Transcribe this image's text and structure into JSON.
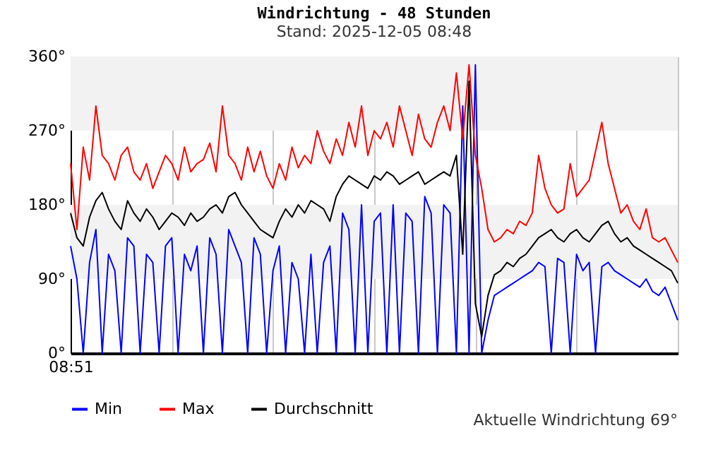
{
  "chart_data": {
    "type": "line",
    "title": "Windrichtung - 48 Stunden",
    "subtitle": "Stand: 2025-12-05 08:48",
    "annotations": [
      "Aktuelle Windrichtung 69°"
    ],
    "categories": [
      "08:51",
      null,
      null,
      null,
      null,
      null,
      null,
      null,
      null,
      null,
      null,
      null,
      null,
      null,
      null,
      null,
      null,
      null,
      null,
      null,
      null,
      null,
      null,
      null,
      null,
      null,
      null,
      null,
      null,
      null,
      null,
      null,
      null,
      null,
      null,
      null,
      null,
      null,
      null,
      null,
      null,
      null,
      null,
      null,
      null,
      null,
      null,
      null,
      null,
      null,
      null,
      null,
      null,
      null,
      null,
      null,
      null,
      null,
      null,
      null,
      null,
      null,
      null,
      null,
      null,
      null,
      null,
      null,
      null,
      null,
      null,
      null,
      null,
      null,
      null,
      null,
      null,
      null,
      null,
      null,
      null,
      null,
      null,
      null,
      null,
      null,
      null,
      null,
      null,
      null,
      null,
      null,
      null,
      null,
      null,
      null,
      null
    ],
    "ylim": [
      0,
      360
    ],
    "yticks": [
      {
        "value": 0,
        "label": "0°"
      },
      {
        "value": 90,
        "label": "90°"
      },
      {
        "value": 180,
        "label": "180°"
      },
      {
        "value": 270,
        "label": "270°"
      },
      {
        "value": 360,
        "label": "360°"
      }
    ],
    "bands": [
      {
        "axis": "y",
        "from": 90,
        "to": 180,
        "label": null,
        "color": "#f2f2f2"
      },
      {
        "axis": "y",
        "from": 270,
        "to": 360,
        "label": null,
        "color": "#f2f2f2"
      }
    ],
    "grid": "x",
    "legend": "bottom",
    "marker": "none",
    "line_style": "solid",
    "series": [
      {
        "name": "Min",
        "color": "#0000ff",
        "values": [
          130,
          90,
          0,
          110,
          150,
          0,
          120,
          100,
          0,
          140,
          130,
          0,
          120,
          110,
          0,
          130,
          140,
          0,
          120,
          100,
          130,
          0,
          140,
          120,
          0,
          150,
          130,
          110,
          0,
          140,
          120,
          0,
          100,
          130,
          0,
          110,
          90,
          0,
          120,
          0,
          110,
          130,
          0,
          170,
          150,
          0,
          180,
          0,
          160,
          170,
          0,
          180,
          0,
          170,
          160,
          0,
          190,
          170,
          0,
          180,
          170,
          0,
          300,
          0,
          350,
          0,
          40,
          70,
          75,
          80,
          85,
          90,
          95,
          100,
          110,
          105,
          0,
          115,
          110,
          0,
          120,
          100,
          110,
          0,
          105,
          110,
          100,
          95,
          90,
          85,
          80,
          90,
          75,
          70,
          80,
          60,
          40
        ]
      },
      {
        "name": "Max",
        "color": "#ff0000",
        "values": [
          230,
          150,
          250,
          210,
          300,
          240,
          230,
          210,
          240,
          250,
          220,
          210,
          230,
          200,
          220,
          240,
          230,
          210,
          250,
          220,
          230,
          235,
          255,
          220,
          300,
          240,
          230,
          210,
          250,
          220,
          245,
          215,
          200,
          230,
          210,
          250,
          225,
          240,
          230,
          270,
          245,
          230,
          260,
          240,
          280,
          250,
          300,
          240,
          270,
          260,
          280,
          250,
          300,
          270,
          240,
          290,
          260,
          250,
          280,
          300,
          270,
          340,
          260,
          350,
          240,
          200,
          150,
          135,
          140,
          150,
          145,
          160,
          155,
          170,
          240,
          200,
          180,
          170,
          175,
          230,
          190,
          200,
          210,
          245,
          280,
          230,
          200,
          170,
          180,
          160,
          150,
          175,
          140,
          135,
          140,
          125,
          110
        ]
      },
      {
        "name": "Durchschnitt",
        "color": "#000000",
        "values": [
          170,
          140,
          130,
          165,
          185,
          195,
          175,
          160,
          150,
          185,
          170,
          160,
          175,
          165,
          150,
          160,
          170,
          165,
          155,
          170,
          160,
          165,
          175,
          180,
          170,
          190,
          195,
          180,
          170,
          160,
          150,
          145,
          140,
          160,
          175,
          165,
          180,
          170,
          185,
          180,
          175,
          160,
          190,
          205,
          215,
          210,
          205,
          200,
          215,
          210,
          220,
          215,
          205,
          210,
          215,
          220,
          205,
          210,
          215,
          220,
          215,
          240,
          120,
          330,
          60,
          20,
          70,
          95,
          100,
          110,
          105,
          115,
          120,
          130,
          140,
          145,
          150,
          140,
          135,
          145,
          150,
          140,
          135,
          145,
          155,
          160,
          145,
          135,
          140,
          130,
          125,
          120,
          115,
          110,
          105,
          100,
          85
        ]
      }
    ]
  }
}
